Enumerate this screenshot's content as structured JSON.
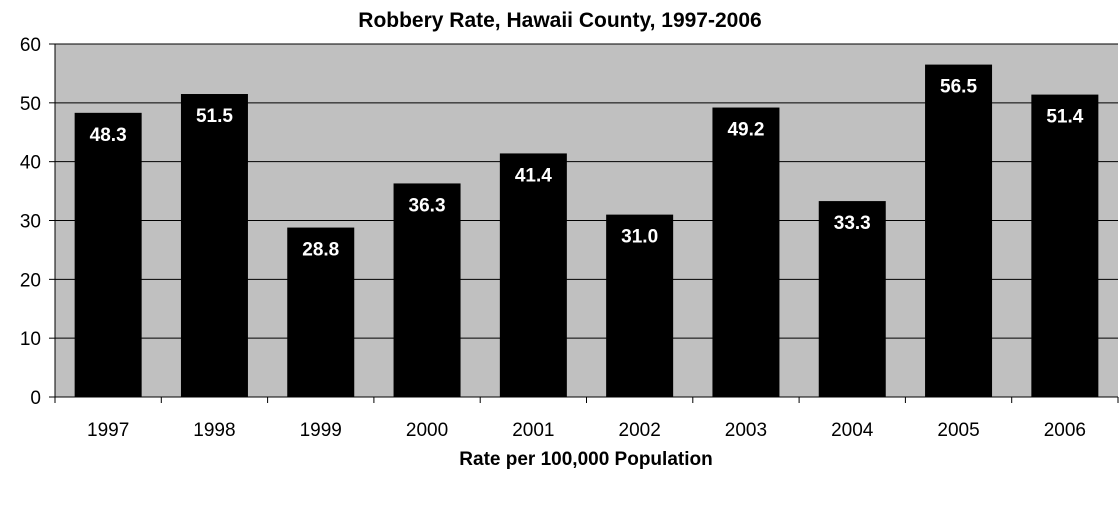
{
  "chart_data": {
    "type": "bar",
    "title": "Robbery Rate, Hawaii County, 1997-2006",
    "xlabel": "Rate per 100,000 Population",
    "ylabel": "",
    "categories": [
      "1997",
      "1998",
      "1999",
      "2000",
      "2001",
      "2002",
      "2003",
      "2004",
      "2005",
      "2006"
    ],
    "values": [
      48.3,
      51.5,
      28.8,
      36.3,
      41.4,
      31.0,
      49.2,
      33.3,
      56.5,
      51.4
    ],
    "data_labels": [
      "48.3",
      "51.5",
      "28.8",
      "36.3",
      "41.4",
      "31.0",
      "49.2",
      "33.3",
      "56.5",
      "51.4"
    ],
    "ylim": [
      0,
      60
    ],
    "yticks": [
      "0",
      "10",
      "20",
      "30",
      "40",
      "50",
      "60"
    ],
    "grid": true,
    "legend": "none",
    "colors": {
      "bar": "#000000",
      "plot_background": "#c0c0c0",
      "gridline": "#000000",
      "data_label": "#ffffff"
    }
  }
}
